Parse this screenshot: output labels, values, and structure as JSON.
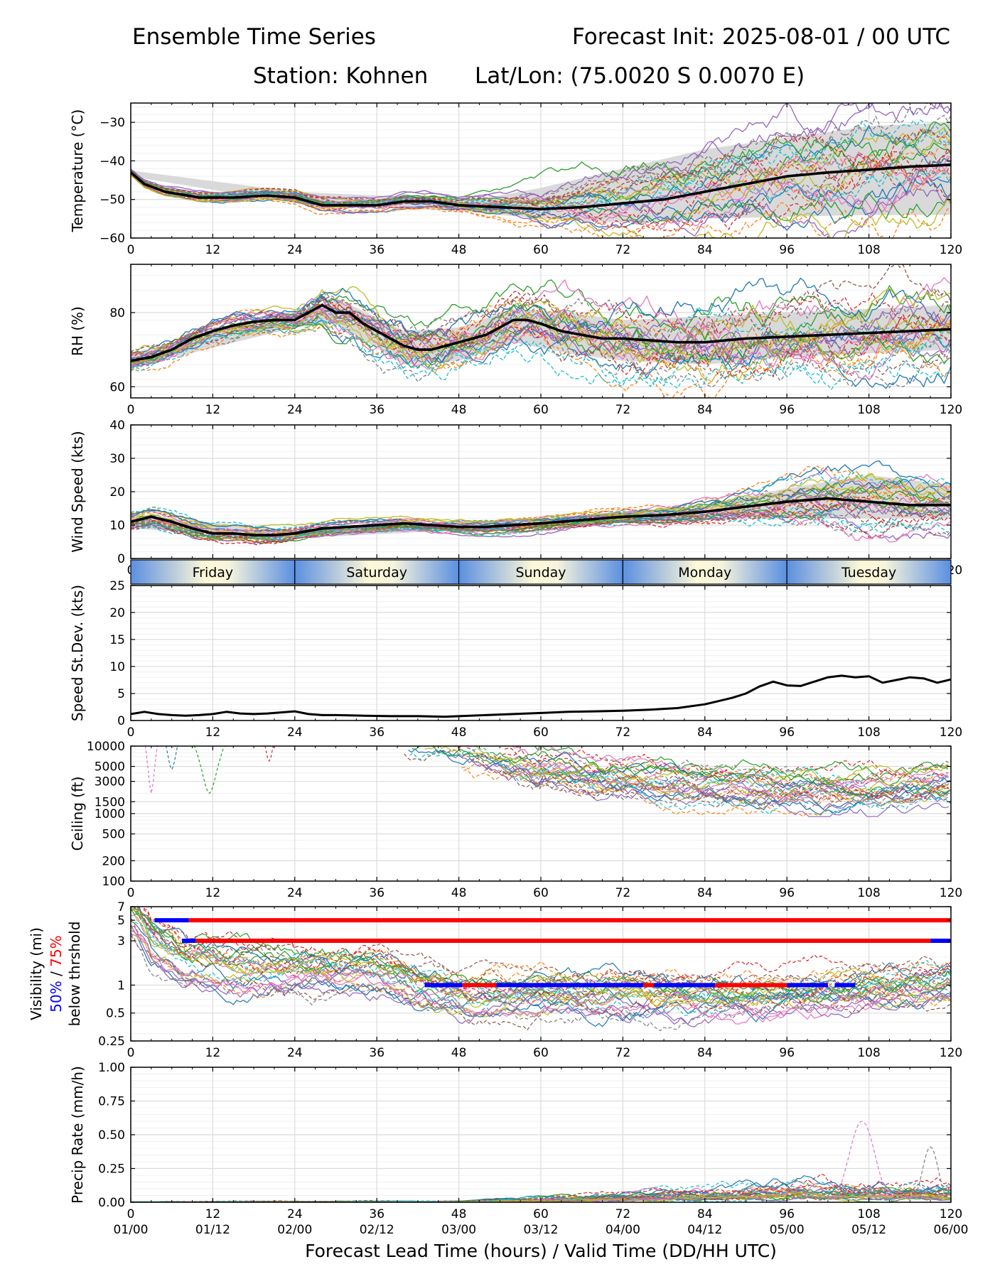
{
  "header": {
    "title_left": "Ensemble Time Series",
    "title_right": "Forecast Init: 2025-08-01 / 00 UTC",
    "station": "Station: Kohnen",
    "latlon": "Lat/Lon: (75.0020 S 0.0070 E)"
  },
  "colors": {
    "mean": "#000000",
    "spread": "#d9d9d9",
    "vis50": "#0000ff",
    "vis75": "#ff0000",
    "members": [
      "#1f77b4",
      "#ff7f0e",
      "#2ca02c",
      "#d62728",
      "#9467bd",
      "#8c564b",
      "#e377c2",
      "#7f7f7f",
      "#bcbd22",
      "#17becf"
    ]
  },
  "chart_data": [
    {
      "type": "line",
      "ylabel": "Temperature (°C)",
      "xlim": [
        0,
        120
      ],
      "ylim": [
        -60,
        -25
      ],
      "yticks": [
        -60,
        -50,
        -40,
        -30
      ],
      "xticks": [
        0,
        12,
        24,
        36,
        48,
        60,
        72,
        84,
        96,
        108,
        120
      ],
      "grid": true,
      "ensemble_mean": {
        "x": [
          0,
          2,
          5,
          10,
          15,
          20,
          24,
          28,
          32,
          36,
          40,
          44,
          48,
          54,
          60,
          66,
          72,
          78,
          84,
          90,
          96,
          102,
          108,
          114,
          120
        ],
        "y": [
          -43,
          -46,
          -48,
          -49.5,
          -49.5,
          -49,
          -49.5,
          -51.5,
          -51.5,
          -51.5,
          -50.5,
          -50.5,
          -51.5,
          -52,
          -52.5,
          -52,
          -51,
          -50,
          -48,
          -46,
          -44,
          -43,
          -42.3,
          -41.5,
          -41
        ]
      },
      "spread_upper": {
        "x": [
          0,
          24,
          48,
          54,
          60,
          72,
          84,
          96,
          108,
          120
        ],
        "y": [
          -42.5,
          -48,
          -50,
          -49,
          -47,
          -42,
          -37,
          -34,
          -31,
          -30
        ]
      },
      "spread_lower": {
        "x": [
          0,
          24,
          48,
          54,
          60,
          72,
          84,
          96,
          108,
          120
        ],
        "y": [
          -44,
          -51,
          -53,
          -54,
          -55,
          -56,
          -55,
          -54.5,
          -54,
          -54
        ]
      }
    },
    {
      "type": "line",
      "ylabel": "RH (%)",
      "xlim": [
        0,
        120
      ],
      "ylim": [
        57,
        93
      ],
      "yticks": [
        60,
        80
      ],
      "xticks": [
        0,
        12,
        24,
        36,
        48,
        60,
        72,
        84,
        96,
        108,
        120
      ],
      "grid": true,
      "ensemble_mean": {
        "x": [
          0,
          3,
          6,
          9,
          12,
          15,
          18,
          21,
          24,
          26,
          28,
          30,
          32,
          34,
          36,
          38,
          40,
          42,
          44,
          46,
          48,
          50,
          52,
          54,
          56,
          58,
          60,
          63,
          66,
          69,
          72,
          76,
          80,
          84,
          90,
          96,
          102,
          108,
          114,
          120
        ],
        "y": [
          67,
          68,
          70,
          73,
          75,
          76.5,
          77.5,
          78,
          78,
          80,
          82,
          80,
          80,
          77,
          75,
          73,
          71,
          70,
          70,
          71,
          72,
          73,
          74,
          76,
          78,
          78,
          77,
          75,
          74,
          73,
          73,
          72.5,
          72,
          72,
          73,
          73.5,
          74,
          74.5,
          75,
          75.5
        ]
      },
      "spread_upper": {
        "x": [
          0,
          24,
          30,
          40,
          48,
          56,
          64,
          72,
          84,
          96,
          108,
          120
        ],
        "y": [
          69,
          80,
          84,
          75,
          76,
          81,
          80,
          78,
          79,
          80,
          81,
          82
        ]
      },
      "spread_lower": {
        "x": [
          0,
          24,
          30,
          40,
          48,
          56,
          64,
          72,
          84,
          96,
          108,
          120
        ],
        "y": [
          65,
          76,
          77,
          66,
          67,
          72,
          69,
          67,
          66,
          68,
          69,
          70
        ]
      }
    },
    {
      "type": "line",
      "ylabel": "Wind Speed (kts)",
      "xlim": [
        0,
        120
      ],
      "ylim": [
        0,
        40
      ],
      "yticks": [
        0,
        10,
        20,
        30,
        40
      ],
      "xticks": [
        0,
        12,
        24,
        36,
        48,
        60,
        72,
        84,
        96,
        108,
        120
      ],
      "grid": true,
      "ensemble_mean": {
        "x": [
          0,
          3,
          6,
          9,
          12,
          15,
          18,
          21,
          24,
          28,
          32,
          36,
          40,
          44,
          48,
          52,
          56,
          60,
          66,
          72,
          78,
          84,
          90,
          96,
          102,
          108,
          114,
          120
        ],
        "y": [
          11,
          12.5,
          11,
          9,
          7.5,
          7.5,
          7,
          7,
          7.5,
          9,
          9.5,
          10,
          10.5,
          10,
          9.5,
          9.5,
          10,
          10.5,
          11.5,
          12.5,
          13,
          14,
          15.5,
          17,
          18,
          17,
          16,
          16
        ]
      },
      "spread_upper": {
        "x": [
          0,
          24,
          48,
          60,
          72,
          84,
          96,
          108,
          120
        ],
        "y": [
          13,
          8.5,
          11,
          12,
          14,
          16,
          21,
          25,
          22
        ]
      },
      "spread_lower": {
        "x": [
          0,
          24,
          48,
          60,
          72,
          84,
          96,
          108,
          120
        ],
        "y": [
          9,
          6,
          8.5,
          9,
          11,
          11.5,
          12,
          12,
          12
        ]
      }
    },
    {
      "type": "table",
      "role": "day-band",
      "days": [
        "Friday",
        "Saturday",
        "Sunday",
        "Monday",
        "Tuesday"
      ]
    },
    {
      "type": "line",
      "ylabel": "Speed St.Dev. (kts)",
      "xlim": [
        0,
        120
      ],
      "ylim": [
        0,
        25
      ],
      "yticks": [
        0,
        5,
        10,
        15,
        20,
        25
      ],
      "xticks": [
        0,
        12,
        24,
        36,
        48,
        60,
        72,
        84,
        96,
        108,
        120
      ],
      "grid": true,
      "series": [
        {
          "x": [
            0,
            2,
            4,
            6,
            8,
            10,
            12,
            14,
            16,
            18,
            20,
            22,
            24,
            26,
            28,
            30,
            34,
            38,
            42,
            46,
            48,
            52,
            56,
            60,
            64,
            68,
            72,
            76,
            80,
            84,
            88,
            90,
            92,
            94,
            96,
            98,
            100,
            102,
            104,
            106,
            108,
            110,
            112,
            114,
            116,
            118,
            120
          ],
          "y": [
            1.2,
            1.6,
            1.2,
            1.0,
            0.9,
            1.0,
            1.2,
            1.6,
            1.3,
            1.2,
            1.3,
            1.5,
            1.7,
            1.2,
            1.0,
            1.0,
            0.9,
            0.8,
            0.8,
            0.7,
            0.8,
            1.0,
            1.2,
            1.4,
            1.6,
            1.7,
            1.8,
            2.0,
            2.3,
            3.0,
            4.2,
            5.0,
            6.3,
            7.2,
            6.5,
            6.4,
            7.2,
            8.0,
            8.3,
            8.0,
            8.2,
            7.0,
            7.5,
            8.0,
            7.8,
            7.0,
            7.6
          ]
        }
      ]
    },
    {
      "type": "line",
      "ylabel": "Ceiling (ft)",
      "yscale": "log",
      "xlim": [
        0,
        120
      ],
      "ylim": [
        100,
        10000
      ],
      "yticks": [
        100,
        200,
        500,
        1000,
        1500,
        3000,
        5000,
        10000
      ],
      "xticks": [
        0,
        12,
        24,
        36,
        48,
        60,
        72,
        84,
        96,
        108,
        120
      ],
      "grid": true
    },
    {
      "type": "line",
      "ylabel_lines": [
        "Visibility (mi)",
        "50%",
        "/",
        "75%",
        "below thrshold"
      ],
      "yscale": "log",
      "xlim": [
        0,
        120
      ],
      "ylim": [
        0.25,
        7
      ],
      "yticks": [
        0.25,
        0.5,
        1,
        3,
        5,
        7
      ],
      "ytick_labels": [
        "0.25",
        "0.5",
        "1",
        "3",
        "5",
        "7"
      ],
      "xticks": [
        0,
        12,
        24,
        36,
        48,
        60,
        72,
        84,
        96,
        108,
        120
      ],
      "grid": true,
      "threshold_bars": [
        {
          "name": "50%",
          "level": 5,
          "segments": [
            [
              3.5,
              8.5
            ]
          ]
        },
        {
          "name": "75%",
          "level": 5,
          "segments": [
            [
              8.5,
              120
            ]
          ]
        },
        {
          "name": "50%",
          "level": 3,
          "segments": [
            [
              7.5,
              9.5
            ],
            [
              117,
              120
            ]
          ]
        },
        {
          "name": "75%",
          "level": 3,
          "segments": [
            [
              9.5,
              117
            ]
          ]
        },
        {
          "name": "50%",
          "level": 1,
          "segments": [
            [
              43,
              48.5
            ],
            [
              53.5,
              75
            ],
            [
              76.5,
              85.5
            ],
            [
              96,
              102
            ],
            [
              103,
              106
            ]
          ]
        },
        {
          "name": "75%",
          "level": 1,
          "segments": [
            [
              48.5,
              53.5
            ],
            [
              75,
              76.5
            ],
            [
              85.5,
              96
            ]
          ]
        }
      ]
    },
    {
      "type": "line",
      "ylabel": "Precip Rate (mm/h)",
      "xlim": [
        0,
        120
      ],
      "ylim": [
        0,
        1
      ],
      "yticks": [
        0.0,
        0.25,
        0.5,
        0.75,
        1.0
      ],
      "ytick_labels": [
        "0.00",
        "0.25",
        "0.50",
        "0.75",
        "1.00"
      ],
      "xticks": [
        0,
        12,
        24,
        36,
        48,
        60,
        72,
        84,
        96,
        108,
        120
      ],
      "secondary_xtick_labels": [
        "01/00",
        "01/12",
        "02/00",
        "02/12",
        "03/00",
        "03/12",
        "04/00",
        "04/12",
        "05/00",
        "05/12",
        "06/00"
      ],
      "xlabel": "Forecast Lead Time (hours) / Valid Time (DD/HH UTC)",
      "grid": true,
      "ensemble_mean": {
        "x": [
          0,
          48,
          60,
          72,
          84,
          96,
          108,
          120
        ],
        "y": [
          0.002,
          0.005,
          0.02,
          0.035,
          0.05,
          0.08,
          0.07,
          0.06
        ]
      }
    }
  ]
}
